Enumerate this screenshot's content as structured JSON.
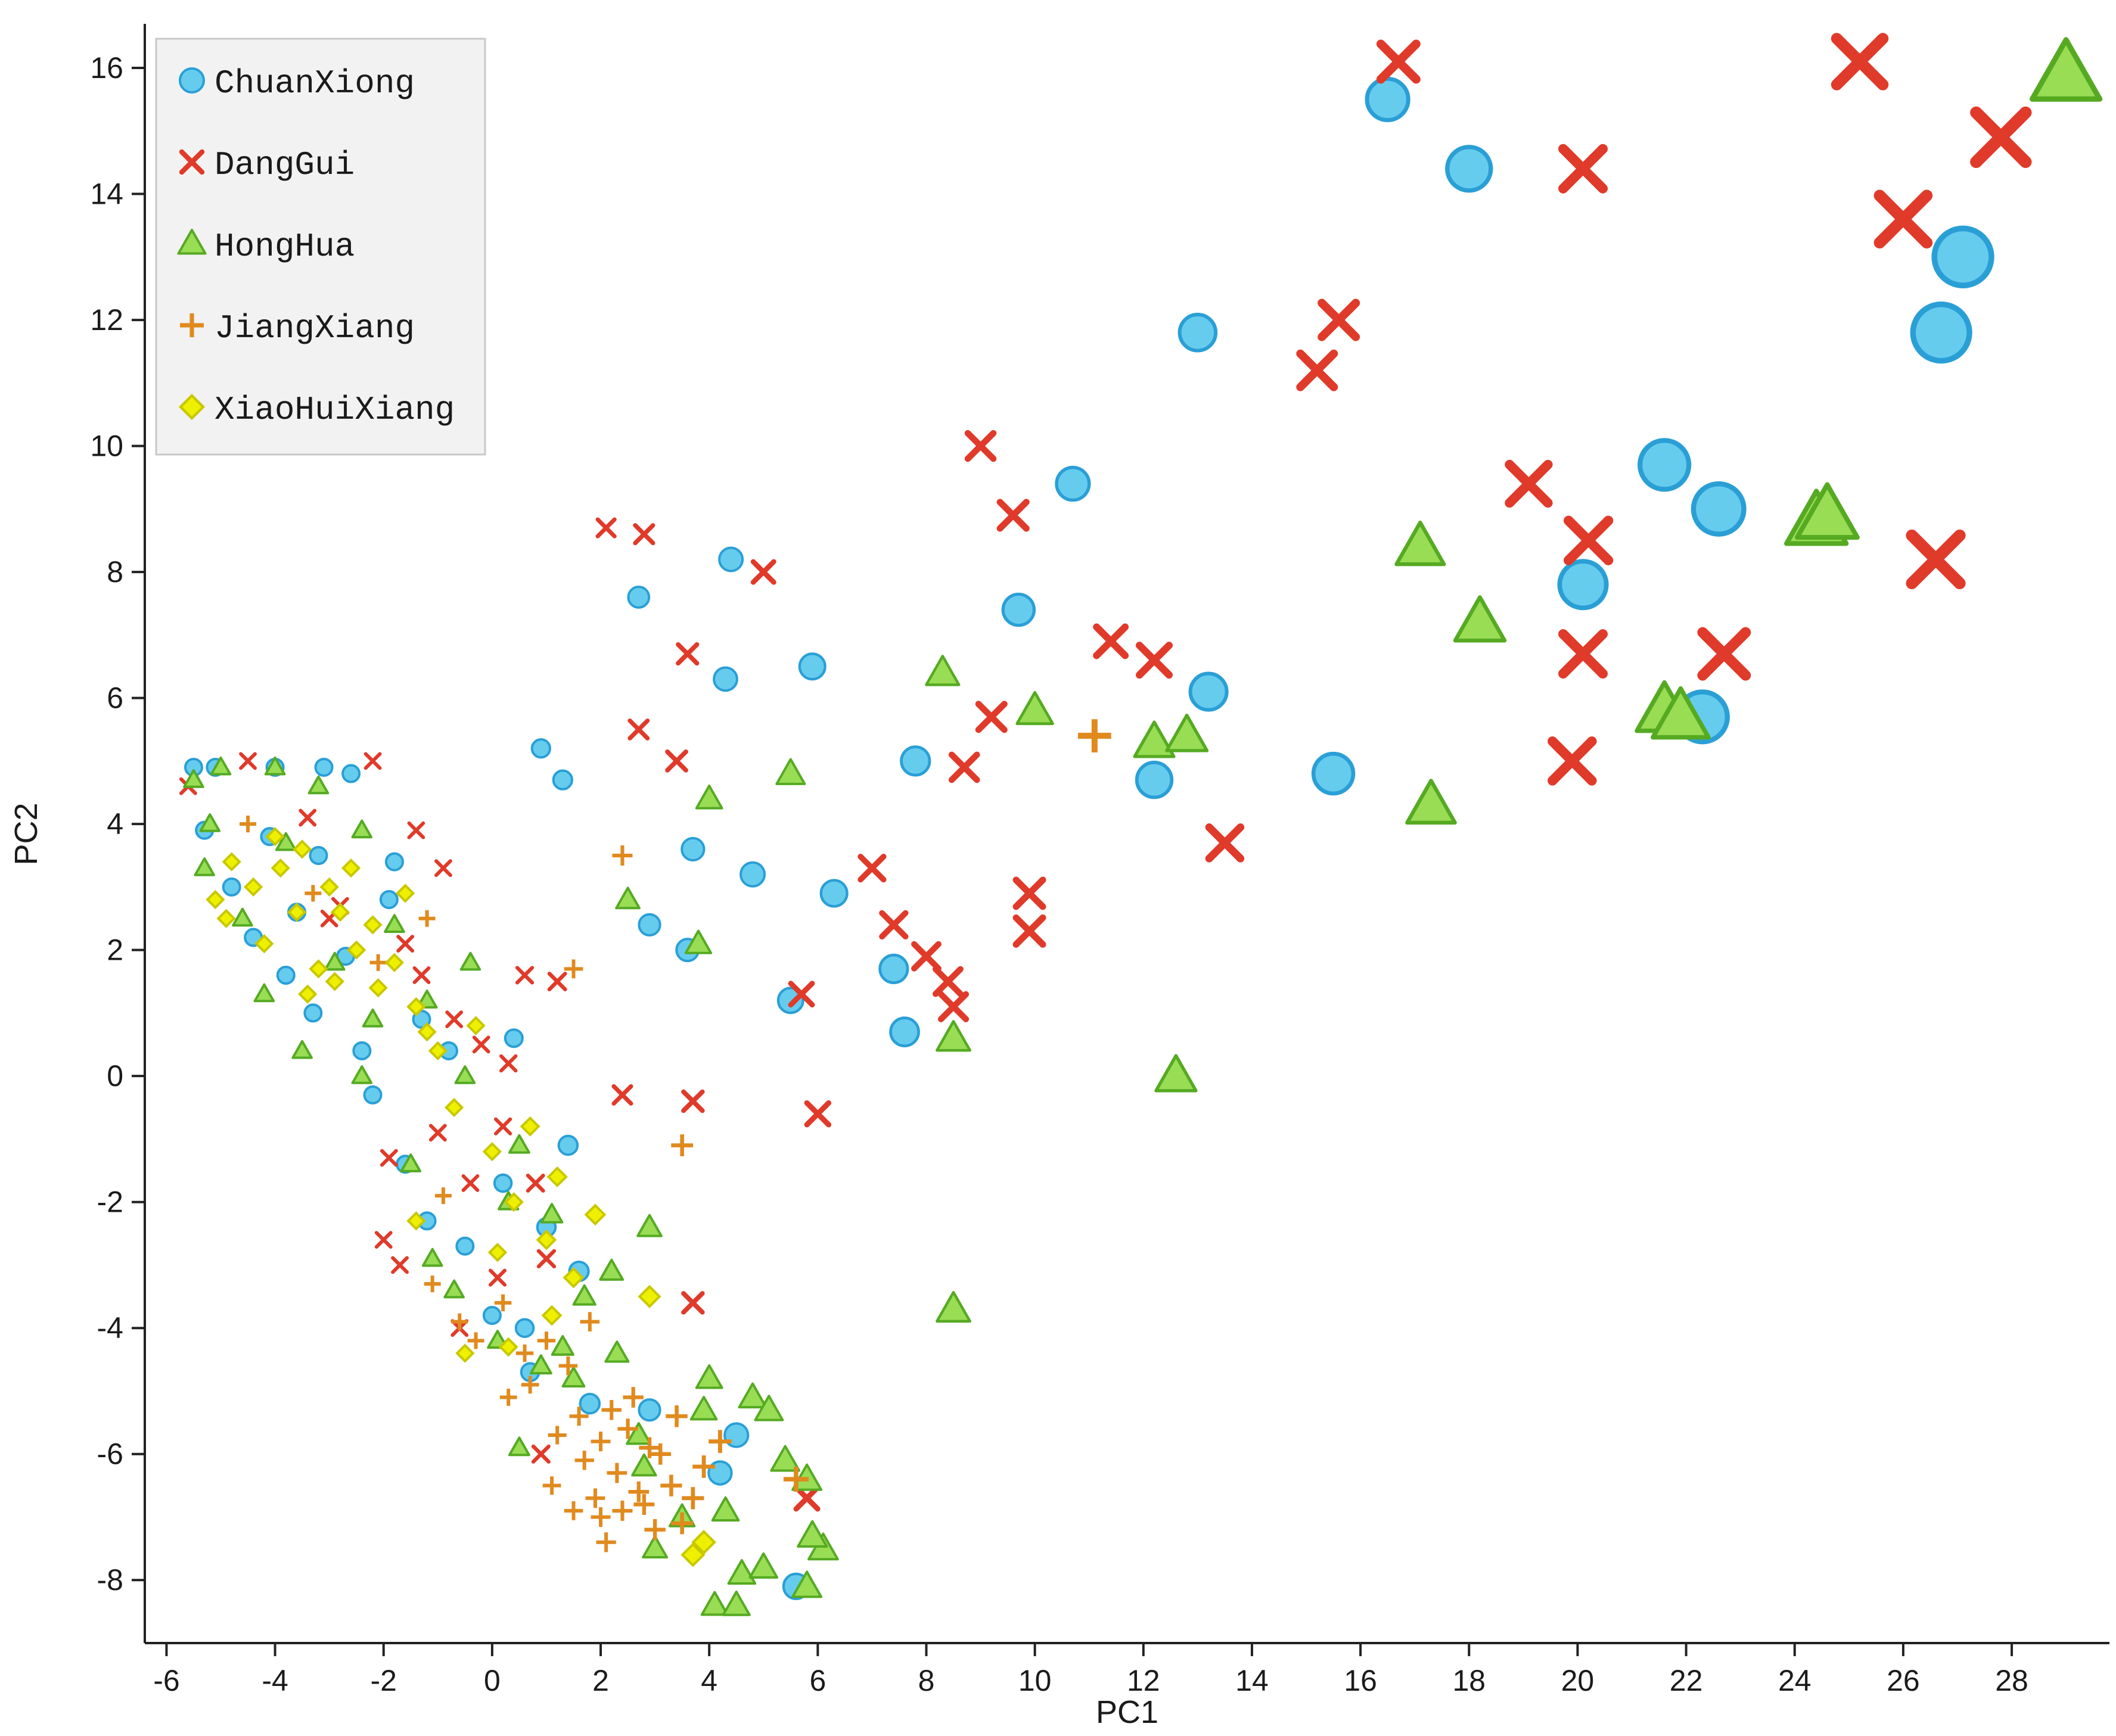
{
  "chart_data": {
    "type": "scatter",
    "title": "",
    "xlabel": "PC1",
    "ylabel": "PC2",
    "xlim": [
      -6.4,
      29.8
    ],
    "ylim": [
      -9.0,
      16.7
    ],
    "xticks": [
      -6,
      -4,
      -2,
      0,
      2,
      4,
      6,
      8,
      10,
      12,
      14,
      16,
      18,
      20,
      22,
      24,
      26,
      28
    ],
    "yticks": [
      -8,
      -6,
      -4,
      -2,
      0,
      2,
      4,
      6,
      8,
      10,
      12,
      14,
      16
    ],
    "grid": false,
    "legend_position": "top-left",
    "marker_size": "proportional to PC1 magnitude",
    "series": [
      {
        "name": "ChuanXiong",
        "marker": "circle",
        "color": "#66ccee",
        "edge_color": "#2a9fd6",
        "points": [
          [
            16.5,
            15.5
          ],
          [
            18.0,
            14.4
          ],
          [
            13.0,
            11.8
          ],
          [
            27.1,
            13.0
          ],
          [
            26.7,
            11.8
          ],
          [
            10.7,
            9.4
          ],
          [
            21.6,
            9.7
          ],
          [
            22.6,
            9.0
          ],
          [
            20.1,
            7.8
          ],
          [
            9.7,
            7.4
          ],
          [
            4.4,
            8.2
          ],
          [
            2.7,
            7.6
          ],
          [
            4.3,
            6.3
          ],
          [
            5.9,
            6.5
          ],
          [
            13.2,
            6.1
          ],
          [
            22.3,
            5.7
          ],
          [
            0.9,
            5.2
          ],
          [
            1.3,
            4.7
          ],
          [
            7.8,
            5.0
          ],
          [
            12.2,
            4.7
          ],
          [
            15.5,
            4.8
          ],
          [
            3.7,
            3.6
          ],
          [
            4.8,
            3.2
          ],
          [
            6.3,
            2.9
          ],
          [
            2.9,
            2.4
          ],
          [
            3.6,
            2.0
          ],
          [
            7.4,
            1.7
          ],
          [
            5.5,
            1.2
          ],
          [
            7.6,
            0.7
          ],
          [
            5.6,
            -8.1
          ],
          [
            4.5,
            -5.7
          ],
          [
            4.2,
            -6.3
          ],
          [
            -5.5,
            4.9
          ],
          [
            -5.1,
            4.9
          ],
          [
            -3.1,
            4.9
          ],
          [
            -4.0,
            4.9
          ],
          [
            -2.6,
            4.8
          ],
          [
            -5.3,
            3.9
          ],
          [
            -4.4,
            2.2
          ],
          [
            -3.8,
            1.6
          ],
          [
            -3.3,
            1.0
          ],
          [
            -2.2,
            -0.3
          ],
          [
            -1.6,
            -1.4
          ],
          [
            -1.2,
            -2.3
          ],
          [
            -0.5,
            -2.7
          ],
          [
            0.0,
            -3.8
          ],
          [
            0.7,
            -4.7
          ],
          [
            1.8,
            -5.2
          ],
          [
            2.9,
            -5.3
          ],
          [
            1.4,
            -1.1
          ],
          [
            0.4,
            0.6
          ],
          [
            -0.8,
            0.4
          ],
          [
            -4.1,
            3.8
          ],
          [
            -3.6,
            2.6
          ],
          [
            -2.7,
            1.9
          ],
          [
            -1.9,
            2.8
          ],
          [
            -1.3,
            0.9
          ],
          [
            0.2,
            -1.7
          ],
          [
            1.0,
            -2.4
          ],
          [
            1.6,
            -3.1
          ],
          [
            -4.8,
            3.0
          ],
          [
            -3.2,
            3.5
          ],
          [
            -2.4,
            0.4
          ],
          [
            -1.8,
            3.4
          ],
          [
            0.6,
            -4.0
          ]
        ]
      },
      {
        "name": "DangGui",
        "marker": "x",
        "color": "#e03a2a",
        "points": [
          [
            16.7,
            16.1
          ],
          [
            25.2,
            16.1
          ],
          [
            27.8,
            14.9
          ],
          [
            26.0,
            13.6
          ],
          [
            20.1,
            14.4
          ],
          [
            15.6,
            12.0
          ],
          [
            15.2,
            11.2
          ],
          [
            9.0,
            10.0
          ],
          [
            19.1,
            9.4
          ],
          [
            9.6,
            8.9
          ],
          [
            20.2,
            8.5
          ],
          [
            2.1,
            8.7
          ],
          [
            2.8,
            8.6
          ],
          [
            5.0,
            8.0
          ],
          [
            26.6,
            8.2
          ],
          [
            3.6,
            6.7
          ],
          [
            11.4,
            6.9
          ],
          [
            12.2,
            6.6
          ],
          [
            20.1,
            6.7
          ],
          [
            22.7,
            6.7
          ],
          [
            9.2,
            5.7
          ],
          [
            2.7,
            5.5
          ],
          [
            3.4,
            5.0
          ],
          [
            8.7,
            4.9
          ],
          [
            19.9,
            5.0
          ],
          [
            13.5,
            3.7
          ],
          [
            7.0,
            3.3
          ],
          [
            9.9,
            2.9
          ],
          [
            7.4,
            2.4
          ],
          [
            9.9,
            2.3
          ],
          [
            8.0,
            1.9
          ],
          [
            8.4,
            1.5
          ],
          [
            8.5,
            1.1
          ],
          [
            1.2,
            1.5
          ],
          [
            0.6,
            1.6
          ],
          [
            5.7,
            1.3
          ],
          [
            2.4,
            -0.3
          ],
          [
            3.7,
            -0.4
          ],
          [
            6.0,
            -0.6
          ],
          [
            3.7,
            -3.6
          ],
          [
            -5.6,
            4.6
          ],
          [
            -4.5,
            5.0
          ],
          [
            -2.2,
            5.0
          ],
          [
            -1.4,
            3.9
          ],
          [
            -0.9,
            3.3
          ],
          [
            -3.4,
            4.1
          ],
          [
            -2.8,
            2.7
          ],
          [
            -1.6,
            2.1
          ],
          [
            -0.2,
            0.5
          ],
          [
            0.3,
            0.2
          ],
          [
            -1.0,
            -0.9
          ],
          [
            -0.4,
            -1.7
          ],
          [
            0.8,
            -1.7
          ],
          [
            -2.0,
            -2.6
          ],
          [
            -1.7,
            -3.0
          ],
          [
            1.0,
            -2.9
          ],
          [
            0.1,
            -3.2
          ],
          [
            -0.6,
            -4.0
          ],
          [
            5.8,
            -6.7
          ],
          [
            0.9,
            -6.0
          ],
          [
            -1.9,
            -1.3
          ],
          [
            -3.0,
            2.5
          ],
          [
            -0.7,
            0.9
          ],
          [
            0.2,
            -0.8
          ],
          [
            -1.3,
            1.6
          ]
        ]
      },
      {
        "name": "HongHua",
        "marker": "triangle",
        "color": "#99dd55",
        "edge_color": "#55aa22",
        "points": [
          [
            29.0,
            15.9
          ],
          [
            24.4,
            8.8
          ],
          [
            24.6,
            8.9
          ],
          [
            17.1,
            8.4
          ],
          [
            18.2,
            7.2
          ],
          [
            21.6,
            5.8
          ],
          [
            21.9,
            5.7
          ],
          [
            8.3,
            6.4
          ],
          [
            10.0,
            5.8
          ],
          [
            12.2,
            5.3
          ],
          [
            12.8,
            5.4
          ],
          [
            17.3,
            4.3
          ],
          [
            4.0,
            4.4
          ],
          [
            5.5,
            4.8
          ],
          [
            2.5,
            2.8
          ],
          [
            3.8,
            2.1
          ],
          [
            8.5,
            0.6
          ],
          [
            12.6,
            0.0
          ],
          [
            8.5,
            -3.7
          ],
          [
            4.1,
            -8.4
          ],
          [
            4.5,
            -8.4
          ],
          [
            4.6,
            -7.9
          ],
          [
            5.0,
            -7.8
          ],
          [
            5.8,
            -8.1
          ],
          [
            6.1,
            -7.5
          ],
          [
            5.8,
            -6.4
          ],
          [
            4.8,
            -5.1
          ],
          [
            5.1,
            -5.3
          ],
          [
            5.4,
            -6.1
          ],
          [
            5.9,
            -7.3
          ],
          [
            4.0,
            -4.8
          ],
          [
            2.7,
            -5.7
          ],
          [
            2.3,
            -4.4
          ],
          [
            2.2,
            -3.1
          ],
          [
            2.9,
            -2.4
          ],
          [
            0.5,
            -5.9
          ],
          [
            3.0,
            -7.5
          ],
          [
            3.5,
            -7.0
          ],
          [
            -5.5,
            4.7
          ],
          [
            -5.0,
            4.9
          ],
          [
            -4.0,
            4.9
          ],
          [
            -3.2,
            4.6
          ],
          [
            -5.3,
            3.3
          ],
          [
            -4.2,
            1.3
          ],
          [
            -3.5,
            0.4
          ],
          [
            -2.4,
            0.0
          ],
          [
            -1.5,
            -1.4
          ],
          [
            -1.1,
            -2.9
          ],
          [
            -0.7,
            -3.4
          ],
          [
            0.1,
            -4.2
          ],
          [
            0.9,
            -4.6
          ],
          [
            1.5,
            -4.8
          ],
          [
            -2.4,
            3.9
          ],
          [
            -1.8,
            2.4
          ],
          [
            -1.2,
            1.2
          ],
          [
            -0.5,
            0.0
          ],
          [
            0.5,
            -1.1
          ],
          [
            1.1,
            -2.2
          ],
          [
            1.7,
            -3.5
          ],
          [
            -4.6,
            2.5
          ],
          [
            -3.8,
            3.7
          ],
          [
            -2.9,
            1.8
          ],
          [
            -0.4,
            1.8
          ],
          [
            0.3,
            -2.0
          ],
          [
            1.3,
            -4.3
          ],
          [
            -5.2,
            4.0
          ],
          [
            -2.2,
            0.9
          ],
          [
            3.9,
            -5.3
          ],
          [
            4.3,
            -6.9
          ],
          [
            2.8,
            -6.2
          ]
        ]
      },
      {
        "name": "JiangXiang",
        "marker": "plus",
        "color": "#e08a1e",
        "points": [
          [
            11.1,
            5.4
          ],
          [
            2.4,
            3.5
          ],
          [
            1.5,
            1.7
          ],
          [
            3.5,
            -1.1
          ],
          [
            -1.2,
            2.5
          ],
          [
            -3.3,
            2.9
          ],
          [
            -2.1,
            1.8
          ],
          [
            -1.1,
            -3.3
          ],
          [
            -0.6,
            -3.9
          ],
          [
            -0.3,
            -4.2
          ],
          [
            0.6,
            -4.4
          ],
          [
            1.4,
            -4.6
          ],
          [
            0.3,
            -5.1
          ],
          [
            2.0,
            -5.8
          ],
          [
            2.3,
            -6.3
          ],
          [
            2.5,
            -5.6
          ],
          [
            2.8,
            -6.8
          ],
          [
            3.1,
            -6.0
          ],
          [
            3.4,
            -5.4
          ],
          [
            1.7,
            -6.1
          ],
          [
            1.5,
            -6.9
          ],
          [
            2.1,
            -7.4
          ],
          [
            3.0,
            -7.2
          ],
          [
            3.7,
            -6.7
          ],
          [
            1.1,
            -6.5
          ],
          [
            2.6,
            -5.1
          ],
          [
            3.3,
            -6.5
          ],
          [
            1.9,
            -6.7
          ],
          [
            2.2,
            -5.3
          ],
          [
            3.9,
            -6.2
          ],
          [
            2.4,
            -6.9
          ],
          [
            1.2,
            -5.7
          ],
          [
            2.9,
            -5.9
          ],
          [
            3.5,
            -7.1
          ],
          [
            1.6,
            -5.4
          ],
          [
            2.7,
            -6.6
          ],
          [
            0.7,
            -4.9
          ],
          [
            1.0,
            -4.2
          ],
          [
            1.8,
            -3.9
          ],
          [
            -4.5,
            4.0
          ],
          [
            5.6,
            -6.4
          ],
          [
            4.2,
            -5.8
          ],
          [
            0.2,
            -3.6
          ],
          [
            -0.9,
            -1.9
          ],
          [
            2.0,
            -7.0
          ]
        ]
      },
      {
        "name": "XiaoHuiXiang",
        "marker": "diamond",
        "color": "#eef000",
        "edge_color": "#c8c800",
        "points": [
          [
            -5.1,
            2.8
          ],
          [
            -4.8,
            3.4
          ],
          [
            -4.4,
            3.0
          ],
          [
            -4.0,
            3.8
          ],
          [
            -3.6,
            2.6
          ],
          [
            -3.2,
            1.7
          ],
          [
            -3.4,
            1.3
          ],
          [
            -2.8,
            2.6
          ],
          [
            -2.5,
            2.0
          ],
          [
            -2.1,
            1.4
          ],
          [
            -2.6,
            3.3
          ],
          [
            -1.6,
            2.9
          ],
          [
            -1.4,
            1.1
          ],
          [
            -1.0,
            0.4
          ],
          [
            -0.7,
            -0.5
          ],
          [
            -0.3,
            0.8
          ],
          [
            0.0,
            -1.2
          ],
          [
            0.4,
            -2.0
          ],
          [
            1.0,
            -2.6
          ],
          [
            1.5,
            -3.2
          ],
          [
            1.9,
            -2.2
          ],
          [
            1.1,
            -3.8
          ],
          [
            0.3,
            -4.3
          ],
          [
            -0.5,
            -4.4
          ],
          [
            -1.4,
            -2.3
          ],
          [
            2.9,
            -3.5
          ],
          [
            3.9,
            -7.4
          ],
          [
            3.7,
            -7.6
          ],
          [
            -3.9,
            3.3
          ],
          [
            -4.2,
            2.1
          ],
          [
            -3.0,
            3.0
          ],
          [
            -2.2,
            2.4
          ],
          [
            -1.8,
            1.8
          ],
          [
            -1.2,
            0.7
          ],
          [
            0.7,
            -0.8
          ],
          [
            1.2,
            -1.6
          ],
          [
            -4.9,
            2.5
          ],
          [
            -3.5,
            3.6
          ],
          [
            -2.9,
            1.5
          ],
          [
            0.1,
            -2.8
          ]
        ]
      }
    ]
  }
}
